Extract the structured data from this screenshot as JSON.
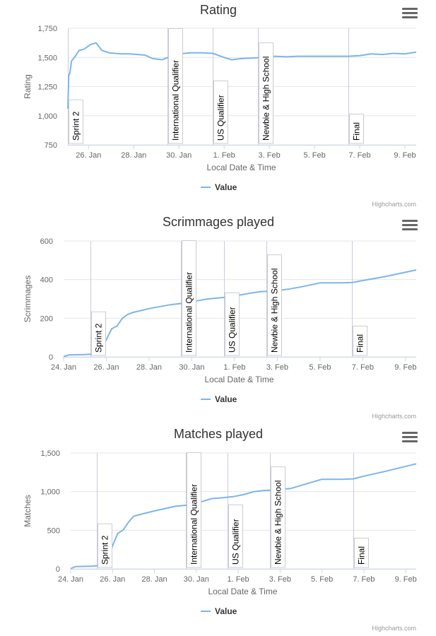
{
  "chart_data": [
    {
      "type": "line",
      "title": "Rating",
      "xlabel": "Local Date & Time",
      "ylabel": "Rating",
      "ylim": [
        750,
        1750
      ],
      "yticks": [
        "750",
        "1,000",
        "1,250",
        "1,500",
        "1,750"
      ],
      "ytick_values": [
        750,
        1000,
        1250,
        1500,
        1750
      ],
      "xlim": [
        "2021-01-25T02:00",
        "2021-02-09T12:00"
      ],
      "xticks": [
        "26. Jan",
        "28. Jan",
        "30. Jan",
        "1. Feb",
        "3. Feb",
        "5. Feb",
        "7. Feb",
        "9. Feb"
      ],
      "xtick_dates": [
        "2021-01-26",
        "2021-01-28",
        "2021-01-30",
        "2021-02-01",
        "2021-02-03",
        "2021-02-05",
        "2021-02-07",
        "2021-02-09"
      ],
      "grid": true,
      "legend": "bottom-center",
      "series": [
        {
          "name": "Value",
          "color": "#7cb5ec",
          "x": [
            "2021-01-25T02:00",
            "2021-01-25T03:00",
            "2021-01-25T04:00",
            "2021-01-25T06:00",
            "2021-01-25T09:00",
            "2021-01-25T14:00",
            "2021-01-25T19:00",
            "2021-01-26T02:00",
            "2021-01-26T08:00",
            "2021-01-26T14:00",
            "2021-01-26T18:00",
            "2021-01-26T22:00",
            "2021-01-27T04:00",
            "2021-01-27T12:00",
            "2021-01-27T20:00",
            "2021-01-28T04:00",
            "2021-01-28T12:00",
            "2021-01-28T20:00",
            "2021-01-29T06:00",
            "2021-01-29T16:00",
            "2021-01-30T00:00",
            "2021-01-30T12:00",
            "2021-01-31T00:00",
            "2021-01-31T12:00",
            "2021-02-01T00:00",
            "2021-02-01T08:00",
            "2021-02-01T18:00",
            "2021-02-02T06:00",
            "2021-02-02T18:00",
            "2021-02-03T06:00",
            "2021-02-03T18:00",
            "2021-02-04T06:00",
            "2021-02-04T18:00",
            "2021-02-05T12:00",
            "2021-02-06T12:00",
            "2021-02-07T00:00",
            "2021-02-07T12:00",
            "2021-02-08T00:00",
            "2021-02-08T12:00",
            "2021-02-09T00:00",
            "2021-02-09T12:00"
          ],
          "values": [
            1060,
            1350,
            1360,
            1470,
            1500,
            1560,
            1570,
            1610,
            1625,
            1560,
            1550,
            1540,
            1535,
            1530,
            1530,
            1525,
            1520,
            1490,
            1480,
            1510,
            1530,
            1540,
            1540,
            1535,
            1500,
            1480,
            1490,
            1495,
            1500,
            1510,
            1505,
            1510,
            1510,
            1510,
            1510,
            1515,
            1530,
            1525,
            1535,
            1530,
            1545
          ]
        }
      ],
      "plot_lines": [
        {
          "label": "Sprint 2",
          "x": "2021-01-25T02:00"
        },
        {
          "label": "International Qualifier",
          "x": "2021-01-29T12:00"
        },
        {
          "label": "US Qualifier",
          "x": "2021-01-31T12:00"
        },
        {
          "label": "Newbie & High School",
          "x": "2021-02-02T12:00"
        },
        {
          "label": "Final",
          "x": "2021-02-06T12:00"
        }
      ],
      "credits": "Highcharts.com"
    },
    {
      "type": "line",
      "title": "Scrimmages played",
      "xlabel": "Local Date & Time",
      "ylabel": "Scrimmages",
      "ylim": [
        0,
        600
      ],
      "yticks": [
        "0",
        "200",
        "400",
        "600"
      ],
      "ytick_values": [
        0,
        200,
        400,
        600
      ],
      "xlim": [
        "2021-01-24T00:00",
        "2021-02-09T12:00"
      ],
      "xticks": [
        "24. Jan",
        "26. Jan",
        "28. Jan",
        "30. Jan",
        "1. Feb",
        "3. Feb",
        "5. Feb",
        "7. Feb",
        "9. Feb"
      ],
      "xtick_dates": [
        "2021-01-24",
        "2021-01-26",
        "2021-01-28",
        "2021-01-30",
        "2021-02-01",
        "2021-02-03",
        "2021-02-05",
        "2021-02-07",
        "2021-02-09"
      ],
      "grid": true,
      "legend": "bottom-center",
      "series": [
        {
          "name": "Value",
          "color": "#7cb5ec",
          "x": [
            "2021-01-24T00:00",
            "2021-01-24T06:00",
            "2021-01-25T00:00",
            "2021-01-25T12:00",
            "2021-01-25T18:00",
            "2021-01-26T00:00",
            "2021-01-26T06:00",
            "2021-01-26T12:00",
            "2021-01-26T18:00",
            "2021-01-27T00:00",
            "2021-01-27T06:00",
            "2021-01-28T00:00",
            "2021-01-29T00:00",
            "2021-01-29T18:00",
            "2021-01-30T06:00",
            "2021-01-30T18:00",
            "2021-01-31T06:00",
            "2021-01-31T18:00",
            "2021-02-01T06:00",
            "2021-02-01T18:00",
            "2021-02-02T06:00",
            "2021-02-02T18:00",
            "2021-02-03T12:00",
            "2021-02-04T06:00",
            "2021-02-05T00:00",
            "2021-02-06T00:00",
            "2021-02-06T12:00",
            "2021-02-07T00:00",
            "2021-02-08T00:00",
            "2021-02-09T12:00"
          ],
          "values": [
            2,
            10,
            12,
            15,
            30,
            90,
            145,
            160,
            200,
            220,
            230,
            250,
            270,
            280,
            290,
            300,
            305,
            310,
            320,
            330,
            338,
            340,
            350,
            365,
            383,
            383,
            385,
            395,
            415,
            450
          ]
        }
      ],
      "plot_lines": [
        {
          "label": "Sprint 2",
          "x": "2021-01-25T06:00"
        },
        {
          "label": "International Qualifier",
          "x": "2021-01-29T12:00"
        },
        {
          "label": "US Qualifier",
          "x": "2021-01-31T12:00"
        },
        {
          "label": "Newbie & High School",
          "x": "2021-02-02T12:00"
        },
        {
          "label": "Final",
          "x": "2021-02-06T12:00"
        }
      ],
      "credits": "Highcharts.com"
    },
    {
      "type": "line",
      "title": "Matches played",
      "xlabel": "Local Date & Time",
      "ylabel": "Matches",
      "ylim": [
        0,
        1500
      ],
      "yticks": [
        "0",
        "500",
        "1,000",
        "1,500"
      ],
      "ytick_values": [
        0,
        500,
        1000,
        1500
      ],
      "xlim": [
        "2021-01-24T00:00",
        "2021-02-09T12:00"
      ],
      "xticks": [
        "24. Jan",
        "26. Jan",
        "28. Jan",
        "30. Jan",
        "1. Feb",
        "3. Feb",
        "5. Feb",
        "7. Feb",
        "9. Feb"
      ],
      "xtick_dates": [
        "2021-01-24",
        "2021-01-26",
        "2021-01-28",
        "2021-01-30",
        "2021-02-01",
        "2021-02-03",
        "2021-02-05",
        "2021-02-07",
        "2021-02-09"
      ],
      "grid": true,
      "legend": "bottom-center",
      "series": [
        {
          "name": "Value",
          "color": "#7cb5ec",
          "x": [
            "2021-01-24T00:00",
            "2021-01-24T06:00",
            "2021-01-25T00:00",
            "2021-01-25T06:00",
            "2021-01-25T12:00",
            "2021-01-25T18:00",
            "2021-01-26T00:00",
            "2021-01-26T06:00",
            "2021-01-26T12:00",
            "2021-01-26T18:00",
            "2021-01-27T00:00",
            "2021-01-27T06:00",
            "2021-01-28T00:00",
            "2021-01-29T00:00",
            "2021-01-29T18:00",
            "2021-01-30T06:00",
            "2021-01-30T18:00",
            "2021-01-31T06:00",
            "2021-01-31T18:00",
            "2021-02-01T06:00",
            "2021-02-01T18:00",
            "2021-02-02T06:00",
            "2021-02-02T18:00",
            "2021-02-03T12:00",
            "2021-02-04T06:00",
            "2021-02-05T00:00",
            "2021-02-06T00:00",
            "2021-02-06T12:00",
            "2021-02-07T00:00",
            "2021-02-08T00:00",
            "2021-02-09T12:00"
          ],
          "values": [
            5,
            30,
            35,
            40,
            45,
            100,
            300,
            460,
            500,
            600,
            680,
            700,
            750,
            810,
            830,
            870,
            910,
            920,
            935,
            960,
            1000,
            1015,
            1020,
            1040,
            1100,
            1160,
            1160,
            1165,
            1200,
            1260,
            1360
          ]
        }
      ],
      "plot_lines": [
        {
          "label": "Sprint 2",
          "x": "2021-01-25T06:00"
        },
        {
          "label": "International Qualifier",
          "x": "2021-01-29T12:00"
        },
        {
          "label": "US Qualifier",
          "x": "2021-01-31T12:00"
        },
        {
          "label": "Newbie & High School",
          "x": "2021-02-02T12:00"
        },
        {
          "label": "Final",
          "x": "2021-02-06T12:00"
        }
      ],
      "credits": "Highcharts.com"
    }
  ]
}
